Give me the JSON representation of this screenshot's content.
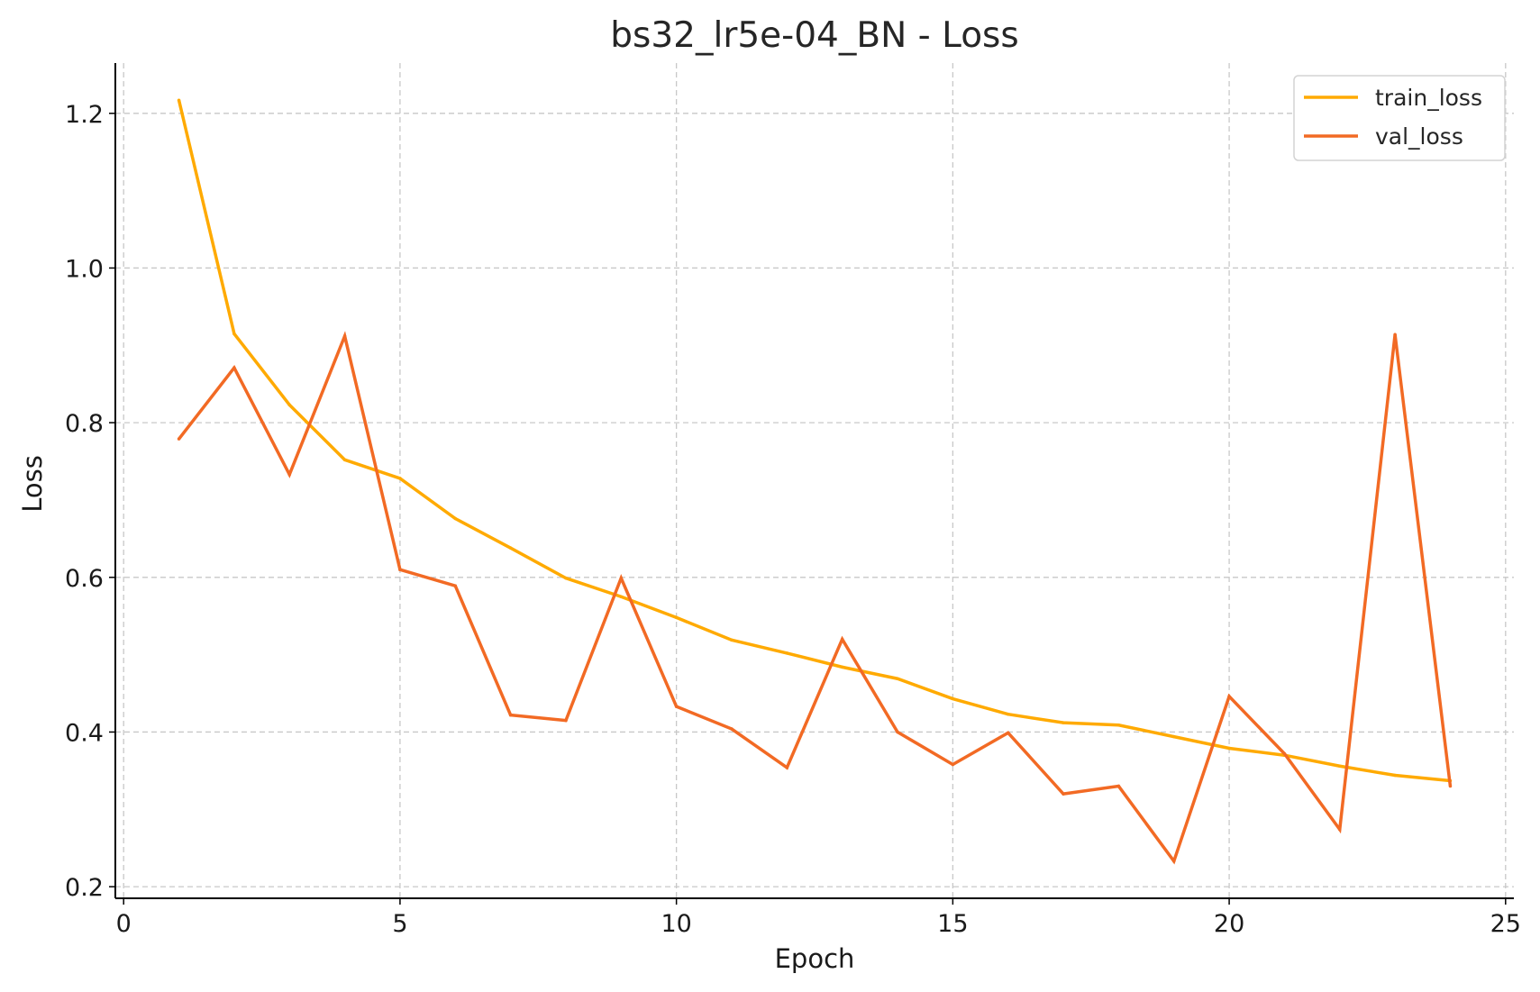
{
  "chart_data": {
    "type": "line",
    "title": "bs32_lr5e-04_BN - Loss",
    "xlabel": "Epoch",
    "ylabel": "Loss",
    "xlim": [
      -0.15,
      25.15
    ],
    "ylim": [
      0.185,
      1.265
    ],
    "xticks": [
      0,
      5,
      10,
      15,
      20,
      25
    ],
    "yticks": [
      0.2,
      0.4,
      0.6,
      0.8,
      1.0,
      1.2
    ],
    "xtick_labels": [
      "0",
      "5",
      "10",
      "15",
      "20",
      "25"
    ],
    "ytick_labels": [
      "0.2",
      "0.4",
      "0.6",
      "0.8",
      "1.0",
      "1.2"
    ],
    "grid": true,
    "legend_position": "top-right",
    "x": [
      1,
      2,
      3,
      4,
      5,
      6,
      7,
      8,
      9,
      10,
      11,
      12,
      13,
      14,
      15,
      16,
      17,
      18,
      19,
      20,
      21,
      22,
      23,
      24
    ],
    "series": [
      {
        "name": "train_loss",
        "color": "#ffaa00",
        "values": [
          1.217,
          0.915,
          0.823,
          0.752,
          0.728,
          0.676,
          0.638,
          0.599,
          0.575,
          0.548,
          0.519,
          0.502,
          0.484,
          0.469,
          0.443,
          0.423,
          0.412,
          0.409,
          0.394,
          0.379,
          0.37,
          0.356,
          0.344,
          0.337
        ]
      },
      {
        "name": "val_loss",
        "color": "#f26a24",
        "values": [
          0.779,
          0.871,
          0.733,
          0.912,
          0.61,
          0.589,
          0.422,
          0.415,
          0.599,
          0.433,
          0.404,
          0.354,
          0.52,
          0.4,
          0.358,
          0.399,
          0.32,
          0.33,
          0.233,
          0.446,
          0.372,
          0.274,
          0.914,
          0.33
        ]
      }
    ]
  }
}
